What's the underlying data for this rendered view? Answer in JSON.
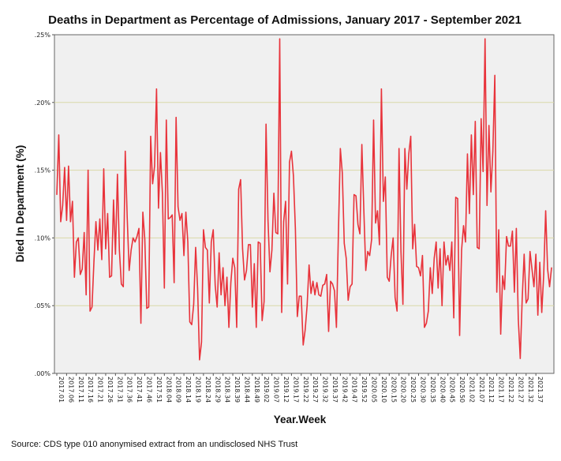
{
  "chart_data": {
    "type": "line",
    "title": "Deaths in Department as Percentage of Admissions, January 2017 - September 2021",
    "xlabel": "Year.Week",
    "ylabel": "Died In Department (%)",
    "source": "Source: CDS type 010 anonymised extract from an undisclosed NHS Trust",
    "ylim": [
      0,
      0.25
    ],
    "yticks": [
      {
        "value": 0.0,
        "label": ".00%"
      },
      {
        "value": 0.05,
        "label": ".05%"
      },
      {
        "value": 0.1,
        "label": ".10%"
      },
      {
        "value": 0.15,
        "label": ".15%"
      },
      {
        "value": 0.2,
        "label": ".20%"
      },
      {
        "value": 0.25,
        "label": ".25%"
      }
    ],
    "grid": true,
    "line_color": "#e8333b",
    "x_tick_labels": [
      "2017.01",
      "2017.06",
      "2017.11",
      "2017.16",
      "2017.21",
      "2017.26",
      "2017.31",
      "2017.36",
      "2017.41",
      "2017.46",
      "2017.51",
      "2018.04",
      "2018.09",
      "2018.14",
      "2018.19",
      "2018.24",
      "2018.29",
      "2018.34",
      "2018.39",
      "2018.44",
      "2018.49",
      "2019.02",
      "2019.07",
      "2019.12",
      "2019.17",
      "2019.22",
      "2019.27",
      "2019.32",
      "2019.37",
      "2019.42",
      "2019.47",
      "2019.52",
      "2020.05",
      "2020.10",
      "2020.15",
      "2020.20",
      "2020.25",
      "2020.30",
      "2020.35",
      "2020.40",
      "2020.45",
      "2020.50",
      "2021.02",
      "2021.07",
      "2021.12",
      "2021.17",
      "2021.22",
      "2021.27",
      "2021.32",
      "2021.37"
    ],
    "series": [
      {
        "name": "Died In Department (%)",
        "values": [
          0.132,
          0.176,
          0.112,
          0.124,
          0.152,
          0.113,
          0.153,
          0.112,
          0.127,
          0.071,
          0.097,
          0.1,
          0.073,
          0.077,
          0.104,
          0.058,
          0.15,
          0.046,
          0.049,
          0.083,
          0.112,
          0.091,
          0.114,
          0.084,
          0.151,
          0.092,
          0.118,
          0.071,
          0.072,
          0.128,
          0.088,
          0.147,
          0.091,
          0.066,
          0.064,
          0.164,
          0.115,
          0.076,
          0.091,
          0.1,
          0.097,
          0.101,
          0.107,
          0.037,
          0.119,
          0.099,
          0.048,
          0.049,
          0.175,
          0.14,
          0.153,
          0.21,
          0.122,
          0.163,
          0.133,
          0.063,
          0.187,
          0.114,
          0.115,
          0.117,
          0.067,
          0.189,
          0.123,
          0.113,
          0.118,
          0.087,
          0.119,
          0.097,
          0.038,
          0.036,
          0.051,
          0.093,
          0.063,
          0.01,
          0.023,
          0.106,
          0.093,
          0.091,
          0.052,
          0.097,
          0.106,
          0.065,
          0.049,
          0.089,
          0.058,
          0.078,
          0.05,
          0.071,
          0.034,
          0.067,
          0.085,
          0.078,
          0.034,
          0.136,
          0.143,
          0.092,
          0.069,
          0.076,
          0.095,
          0.095,
          0.049,
          0.081,
          0.034,
          0.097,
          0.096,
          0.039,
          0.053,
          0.184,
          0.113,
          0.075,
          0.091,
          0.133,
          0.104,
          0.103,
          0.247,
          0.045,
          0.112,
          0.127,
          0.066,
          0.156,
          0.164,
          0.146,
          0.107,
          0.042,
          0.057,
          0.057,
          0.021,
          0.032,
          0.05,
          0.08,
          0.059,
          0.068,
          0.058,
          0.067,
          0.058,
          0.057,
          0.065,
          0.066,
          0.073,
          0.031,
          0.068,
          0.066,
          0.061,
          0.034,
          0.103,
          0.166,
          0.148,
          0.096,
          0.085,
          0.054,
          0.064,
          0.066,
          0.132,
          0.131,
          0.11,
          0.103,
          0.169,
          0.121,
          0.076,
          0.09,
          0.087,
          0.099,
          0.187,
          0.111,
          0.12,
          0.095,
          0.21,
          0.127,
          0.145,
          0.071,
          0.068,
          0.087,
          0.1,
          0.056,
          0.046,
          0.166,
          0.09,
          0.051,
          0.166,
          0.136,
          0.162,
          0.175,
          0.092,
          0.11,
          0.079,
          0.078,
          0.072,
          0.087,
          0.034,
          0.037,
          0.046,
          0.078,
          0.059,
          0.085,
          0.097,
          0.063,
          0.092,
          0.05,
          0.097,
          0.08,
          0.087,
          0.076,
          0.097,
          0.041,
          0.13,
          0.129,
          0.028,
          0.091,
          0.109,
          0.097,
          0.162,
          0.118,
          0.176,
          0.132,
          0.186,
          0.093,
          0.092,
          0.188,
          0.149,
          0.247,
          0.124,
          0.183,
          0.134,
          0.164,
          0.22,
          0.06,
          0.106,
          0.029,
          0.072,
          0.062,
          0.101,
          0.094,
          0.094,
          0.105,
          0.06,
          0.107,
          0.04,
          0.011,
          0.055,
          0.088,
          0.052,
          0.055,
          0.09,
          0.077,
          0.064,
          0.088,
          0.043,
          0.082,
          0.045,
          0.073,
          0.12,
          0.077,
          0.064,
          0.078
        ]
      }
    ]
  }
}
